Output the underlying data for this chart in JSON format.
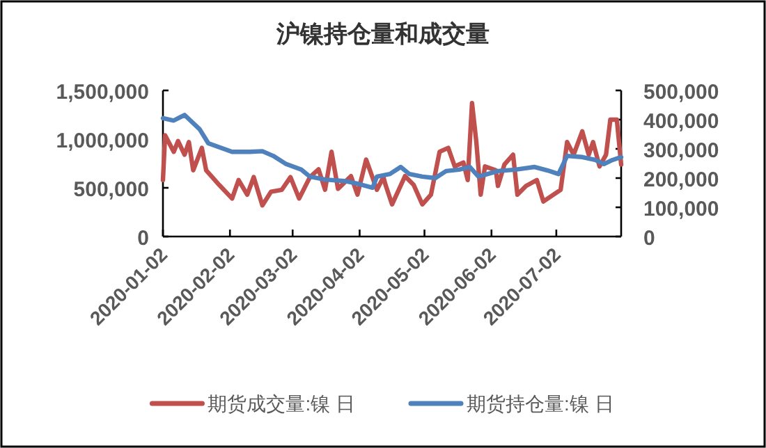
{
  "chart_data": {
    "type": "line",
    "title": "沪镍持仓量和成交量",
    "xlim": [
      "2020-01-02",
      "2020-08-01"
    ],
    "xticks": [
      "2020-01-02",
      "2020-02-02",
      "2020-03-02",
      "2020-04-02",
      "2020-05-02",
      "2020-06-02",
      "2020-07-02"
    ],
    "ylim": [
      0,
      1500000
    ],
    "yticks": [
      {
        "value": 0,
        "label": "0"
      },
      {
        "value": 500000,
        "label": "500,000"
      },
      {
        "value": 1000000,
        "label": "1,000,000"
      },
      {
        "value": 1500000,
        "label": "1,500,000"
      }
    ],
    "y2lim": [
      0,
      500000
    ],
    "y2ticks": [
      {
        "value": 0,
        "label": "0"
      },
      {
        "value": 100000,
        "label": "100,000"
      },
      {
        "value": 200000,
        "label": "200,000"
      },
      {
        "value": 300000,
        "label": "300,000"
      },
      {
        "value": 400000,
        "label": "400,000"
      },
      {
        "value": 500000,
        "label": "500,000"
      }
    ],
    "grid": false,
    "legend": "bottom",
    "marker": "none",
    "line_style": "solid",
    "series": [
      {
        "name": "期货成交量:镍 日",
        "color": "#c0504d",
        "x": [
          "2020-01-02",
          "2020-01-03",
          "2020-01-07",
          "2020-01-09",
          "2020-01-12",
          "2020-01-14",
          "2020-01-16",
          "2020-01-20",
          "2020-01-22",
          "2020-01-28",
          "2020-02-03",
          "2020-02-06",
          "2020-02-10",
          "2020-02-13",
          "2020-02-17",
          "2020-02-21",
          "2020-02-26",
          "2020-03-01",
          "2020-03-05",
          "2020-03-10",
          "2020-03-14",
          "2020-03-17",
          "2020-03-20",
          "2020-03-23",
          "2020-03-29",
          "2020-04-01",
          "2020-04-05",
          "2020-04-10",
          "2020-04-13",
          "2020-04-14",
          "2020-04-17",
          "2020-04-23",
          "2020-04-27",
          "2020-05-01",
          "2020-05-05",
          "2020-05-09",
          "2020-05-13",
          "2020-05-16",
          "2020-05-20",
          "2020-05-22",
          "2020-05-24",
          "2020-05-26",
          "2020-05-28",
          "2020-05-30",
          "2020-06-04",
          "2020-06-05",
          "2020-06-08",
          "2020-06-12",
          "2020-06-14",
          "2020-06-18",
          "2020-06-23",
          "2020-06-26",
          "2020-07-04",
          "2020-07-07",
          "2020-07-10",
          "2020-07-14",
          "2020-07-17",
          "2020-07-19",
          "2020-07-22",
          "2020-07-25",
          "2020-07-27",
          "2020-07-30",
          "2020-08-01"
        ],
        "values": [
          580000,
          1040000,
          870000,
          980000,
          840000,
          970000,
          680000,
          910000,
          680000,
          530000,
          390000,
          580000,
          430000,
          610000,
          320000,
          460000,
          480000,
          610000,
          390000,
          610000,
          690000,
          480000,
          870000,
          490000,
          620000,
          430000,
          790000,
          480000,
          610000,
          530000,
          330000,
          620000,
          530000,
          330000,
          430000,
          870000,
          910000,
          720000,
          760000,
          580000,
          1370000,
          970000,
          430000,
          720000,
          680000,
          520000,
          740000,
          840000,
          430000,
          520000,
          580000,
          360000,
          480000,
          970000,
          840000,
          1080000,
          840000,
          970000,
          720000,
          840000,
          1200000,
          1200000,
          740000
        ]
      },
      {
        "name": "期货持仓量:镍 日",
        "color": "#4f81bd",
        "axis": "y2",
        "x": [
          "2020-01-02",
          "2020-01-07",
          "2020-01-12",
          "2020-01-19",
          "2020-01-23",
          "2020-02-03",
          "2020-02-11",
          "2020-02-17",
          "2020-02-22",
          "2020-02-28",
          "2020-03-06",
          "2020-03-10",
          "2020-03-17",
          "2020-03-26",
          "2020-04-01",
          "2020-04-08",
          "2020-04-10",
          "2020-04-16",
          "2020-04-21",
          "2020-04-25",
          "2020-05-01",
          "2020-05-07",
          "2020-05-12",
          "2020-05-18",
          "2020-05-23",
          "2020-05-27",
          "2020-06-05",
          "2020-06-13",
          "2020-06-22",
          "2020-06-28",
          "2020-07-03",
          "2020-07-07",
          "2020-07-14",
          "2020-07-20",
          "2020-07-24",
          "2020-07-28",
          "2020-08-01"
        ],
        "values": [
          405000,
          397000,
          416000,
          367000,
          319000,
          290000,
          290000,
          292000,
          276000,
          248000,
          229000,
          205000,
          195000,
          190000,
          181000,
          167000,
          205000,
          214000,
          238000,
          214000,
          205000,
          200000,
          224000,
          229000,
          238000,
          205000,
          224000,
          229000,
          238000,
          226000,
          214000,
          276000,
          272000,
          262000,
          248000,
          262000,
          272000
        ]
      }
    ]
  }
}
